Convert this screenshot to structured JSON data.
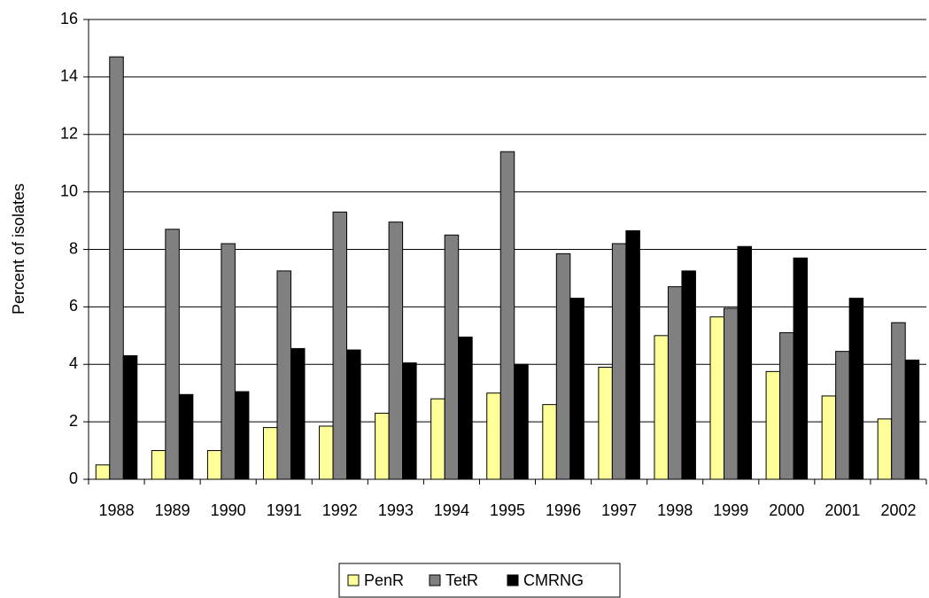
{
  "chart_data": {
    "type": "bar",
    "y_label": "Percent of isolates",
    "categories": [
      "1988",
      "1989",
      "1990",
      "1991",
      "1992",
      "1993",
      "1994",
      "1995",
      "1996",
      "1997",
      "1998",
      "1999",
      "2000",
      "2001",
      "2002"
    ],
    "series": [
      {
        "name": "PenR",
        "color": "#ffff99",
        "values": [
          0.5,
          1.0,
          1.0,
          1.8,
          1.85,
          2.3,
          2.8,
          3.0,
          2.6,
          3.9,
          5.0,
          5.65,
          3.75,
          2.9,
          2.1
        ]
      },
      {
        "name": "TetR",
        "color": "#808080",
        "values": [
          14.7,
          8.7,
          8.2,
          7.25,
          9.3,
          8.95,
          8.5,
          11.4,
          7.85,
          8.2,
          6.7,
          5.95,
          5.1,
          4.45,
          5.45
        ]
      },
      {
        "name": "CMRNG",
        "color": "#000000",
        "values": [
          4.3,
          2.95,
          3.05,
          4.55,
          4.5,
          4.05,
          4.95,
          4.0,
          6.3,
          8.65,
          7.25,
          8.1,
          7.7,
          6.3,
          4.15
        ]
      }
    ],
    "ylim": [
      0,
      16
    ],
    "yticks": [
      0,
      2,
      4,
      6,
      8,
      10,
      12,
      14,
      16
    ],
    "grid": true,
    "legend": "bottom"
  }
}
